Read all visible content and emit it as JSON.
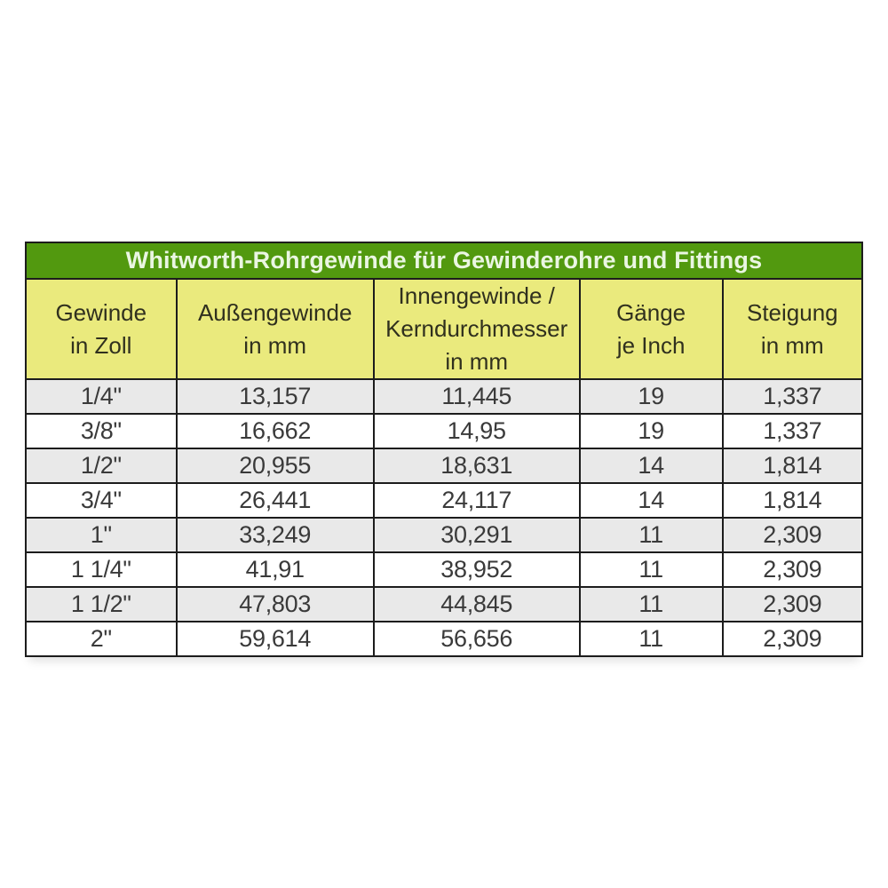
{
  "table": {
    "title": "Whitworth-Rohrgewinde für Gewinderohre und Fittings",
    "columns": [
      "Gewinde\nin Zoll",
      "Außengewinde\nin mm",
      "Innengewinde /\nKerndurchmesser\nin mm",
      "Gänge\nje Inch",
      "Steigung\nin mm"
    ],
    "rows": [
      [
        "1/4\"",
        "13,157",
        "11,445",
        "19",
        "1,337"
      ],
      [
        "3/8\"",
        "16,662",
        "14,95",
        "19",
        "1,337"
      ],
      [
        "1/2\"",
        "20,955",
        "18,631",
        "14",
        "1,814"
      ],
      [
        "3/4\"",
        "26,441",
        "24,117",
        "14",
        "1,814"
      ],
      [
        "1\"",
        "33,249",
        "30,291",
        "11",
        "2,309"
      ],
      [
        "1 1/4\"",
        "41,91",
        "38,952",
        "11",
        "2,309"
      ],
      [
        "1 1/2\"",
        "47,803",
        "44,845",
        "11",
        "2,309"
      ],
      [
        "2\"",
        "59,614",
        "56,656",
        "11",
        "2,309"
      ]
    ],
    "colors": {
      "page_bg": "#ffffff",
      "title_bg": "#52990f",
      "title_text": "#eaf6e2",
      "header_bg": "#eaea7d",
      "header_text": "#30301e",
      "row_stripe_bg": "#e9e9e9",
      "row_bg": "#ffffff",
      "border": "#1c1c1c",
      "cell_text": "#3a3a3a"
    }
  },
  "chart_data": {
    "type": "table",
    "title": "Whitworth-Rohrgewinde für Gewinderohre und Fittings",
    "columns": [
      "Gewinde in Zoll",
      "Außengewinde in mm",
      "Innengewinde / Kerndurchmesser in mm",
      "Gänge je Inch",
      "Steigung in mm"
    ],
    "rows": [
      [
        "1/4\"",
        "13,157",
        "11,445",
        "19",
        "1,337"
      ],
      [
        "3/8\"",
        "16,662",
        "14,95",
        "19",
        "1,337"
      ],
      [
        "1/2\"",
        "20,955",
        "18,631",
        "14",
        "1,814"
      ],
      [
        "3/4\"",
        "26,441",
        "24,117",
        "14",
        "1,814"
      ],
      [
        "1\"",
        "33,249",
        "30,291",
        "11",
        "2,309"
      ],
      [
        "1 1/4\"",
        "41,91",
        "38,952",
        "11",
        "2,309"
      ],
      [
        "1 1/2\"",
        "47,803",
        "44,845",
        "11",
        "2,309"
      ],
      [
        "2\"",
        "59,614",
        "56,656",
        "11",
        "2,309"
      ]
    ]
  }
}
